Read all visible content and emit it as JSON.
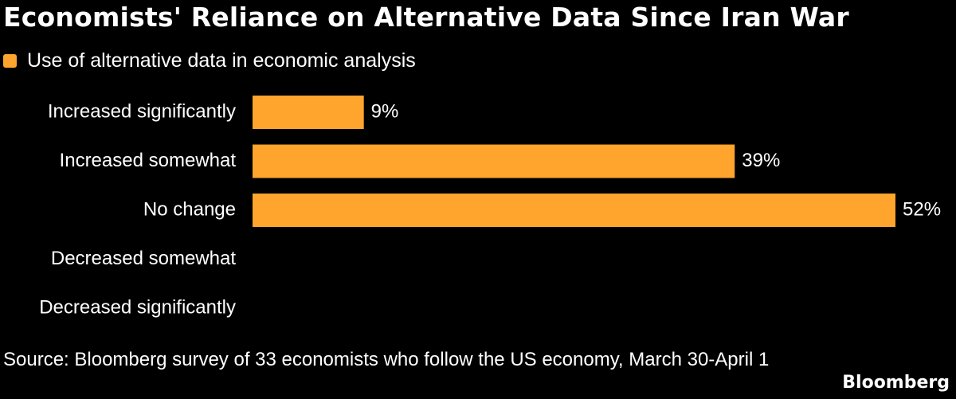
{
  "title": "Economists' Reliance on Alternative Data Since Iran War",
  "legend": {
    "label": "Use of alternative data in economic analysis",
    "color": "#FFA42D"
  },
  "source": "Source: Bloomberg survey of 33 economists who follow the US economy, March 30-April 1",
  "brand": "Bloomberg",
  "chart_data": {
    "type": "bar",
    "orientation": "horizontal",
    "title": "Economists' Reliance on Alternative Data Since Iran War",
    "categories": [
      "Increased significantly",
      "Increased somewhat",
      "No change",
      "Decreased somewhat",
      "Decreased significantly"
    ],
    "series": [
      {
        "name": "Use of alternative data in economic analysis",
        "values": [
          9,
          39,
          52,
          0,
          0
        ],
        "labels": [
          "9%",
          "39%",
          "52%",
          "",
          ""
        ],
        "color": "#FFA42D"
      }
    ],
    "xlim": [
      0,
      52
    ],
    "unit": "%",
    "xlabel": "",
    "ylabel": "",
    "grid": false,
    "legend_position": "top-left"
  }
}
